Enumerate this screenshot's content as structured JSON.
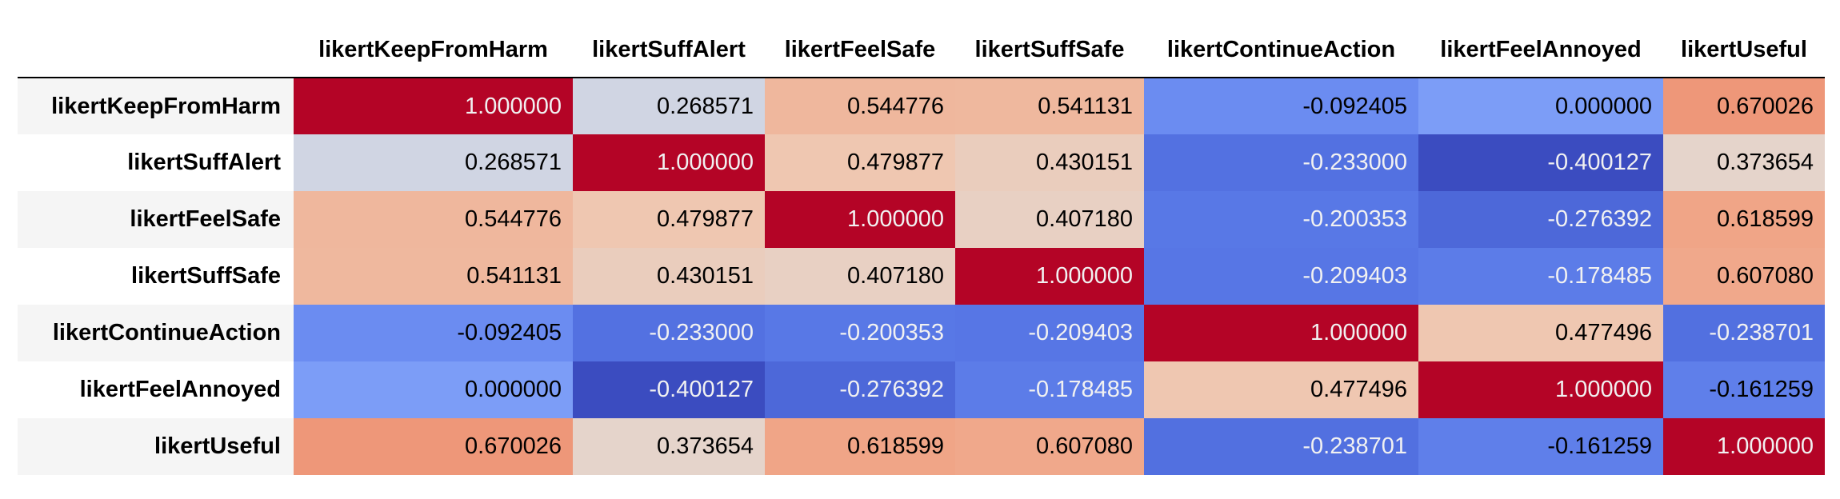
{
  "chart_data": {
    "type": "heatmap",
    "colormap": "coolwarm",
    "color_scale": {
      "min": -0.400127,
      "max": 1.0,
      "low_color": "#3b4cc0",
      "mid_color": "#dddddd",
      "high_color": "#b40426"
    },
    "columns": [
      "likertKeepFromHarm",
      "likertSuffAlert",
      "likertFeelSafe",
      "likertSuffSafe",
      "likertContinueAction",
      "likertFeelAnnoyed",
      "likertUseful"
    ],
    "rows": [
      "likertKeepFromHarm",
      "likertSuffAlert",
      "likertFeelSafe",
      "likertSuffSafe",
      "likertContinueAction",
      "likertFeelAnnoyed",
      "likertUseful"
    ],
    "values": [
      [
        "1.000000",
        "0.268571",
        "0.544776",
        "0.541131",
        "-0.092405",
        "0.000000",
        "0.670026"
      ],
      [
        "0.268571",
        "1.000000",
        "0.479877",
        "0.430151",
        "-0.233000",
        "-0.400127",
        "0.373654"
      ],
      [
        "0.544776",
        "0.479877",
        "1.000000",
        "0.407180",
        "-0.200353",
        "-0.276392",
        "0.618599"
      ],
      [
        "0.541131",
        "0.430151",
        "0.407180",
        "1.000000",
        "-0.209403",
        "-0.178485",
        "0.607080"
      ],
      [
        "-0.092405",
        "-0.233000",
        "-0.200353",
        "-0.209403",
        "1.000000",
        "0.477496",
        "-0.238701"
      ],
      [
        "0.000000",
        "-0.400127",
        "-0.276392",
        "-0.178485",
        "0.477496",
        "1.000000",
        "-0.161259"
      ],
      [
        "0.670026",
        "0.373654",
        "0.618599",
        "0.607080",
        "-0.238701",
        "-0.161259",
        "1.000000"
      ]
    ]
  }
}
